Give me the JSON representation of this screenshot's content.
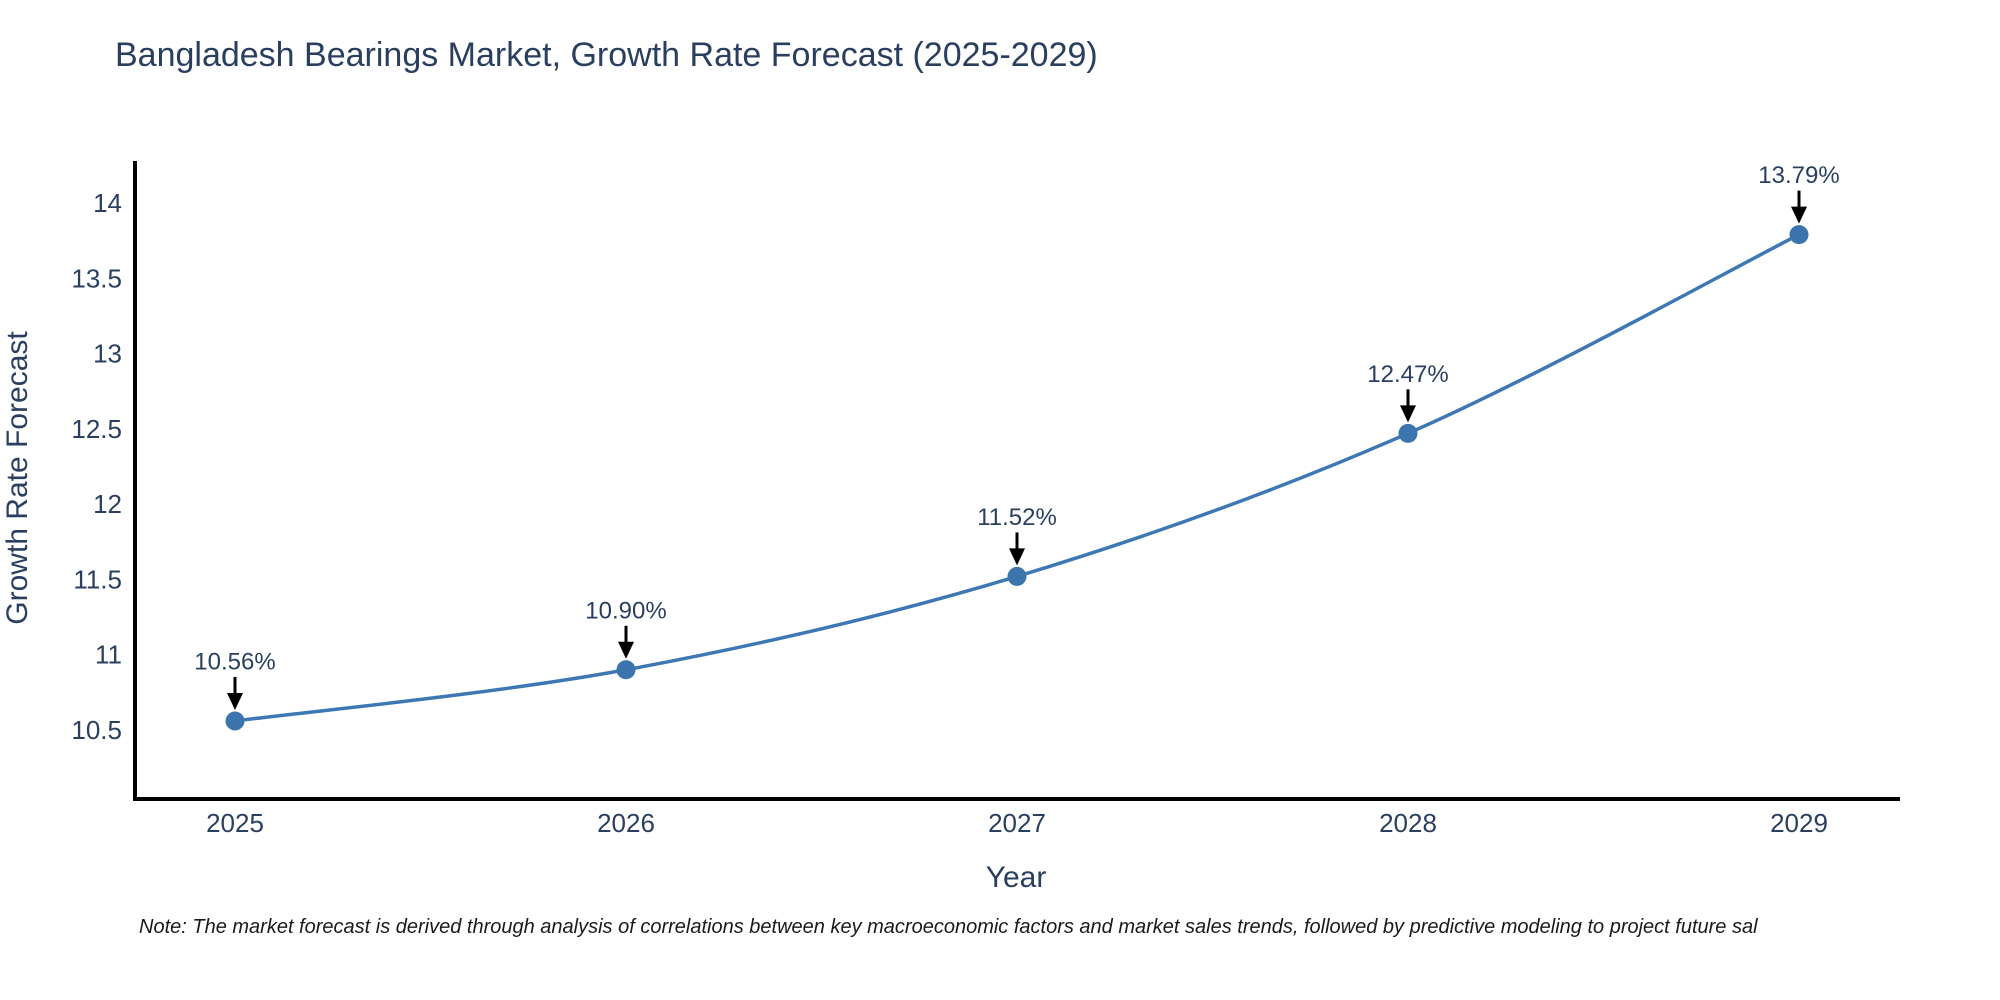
{
  "chart": {
    "note": "Note: The market forecast is derived through analysis of correlations between key macroeconomic factors and market sales trends, followed by predictive modeling to project future sal",
    "colors": {
      "line": "#3d78b4",
      "marker_fill": "#3c74ad",
      "axis": "#000000",
      "text": "#2a3f5f",
      "note_text": "#1a1a1a",
      "arrow": "#000000",
      "background": "#ffffff"
    }
  },
  "chart_data": {
    "type": "line",
    "title": "Bangladesh Bearings Market, Growth Rate Forecast (2025-2029)",
    "xlabel": "Year",
    "ylabel": "Growth Rate Forecast",
    "x": [
      2025,
      2026,
      2027,
      2028,
      2029
    ],
    "series": [
      {
        "name": "Growth Rate Forecast",
        "values": [
          10.56,
          10.9,
          11.52,
          12.47,
          13.79
        ],
        "point_labels": [
          "10.56%",
          "10.90%",
          "11.52%",
          "12.47%",
          "13.79%"
        ]
      }
    ],
    "xtick_labels": [
      "2025",
      "2026",
      "2027",
      "2028",
      "2029"
    ],
    "ytick_values": [
      10.5,
      11,
      11.5,
      12,
      12.5,
      13,
      13.5,
      14
    ],
    "ytick_labels": [
      "10.5",
      "11",
      "11.5",
      "12",
      "12.5",
      "13",
      "13.5",
      "14"
    ],
    "ylim": [
      10.03,
      14.27
    ],
    "grid": false,
    "legend_position": "none",
    "line_shape": "spline",
    "annotations_have_arrows": true
  }
}
